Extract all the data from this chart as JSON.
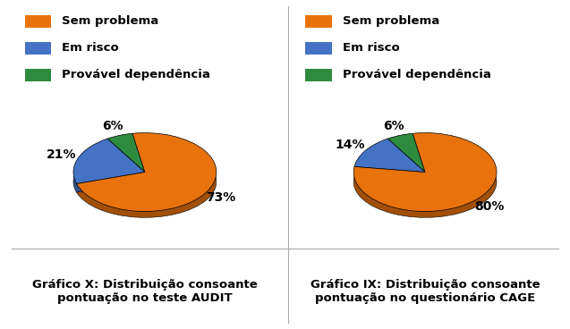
{
  "left_chart": {
    "values": [
      73,
      21,
      6
    ],
    "labels": [
      "73%",
      "21%",
      "6%"
    ],
    "colors": [
      "#E8720C",
      "#4472C4",
      "#2E8B3E"
    ],
    "title": "Gráfico X: Distribuição consoante\npontuação no teste AUDIT",
    "legend_labels": [
      "Sem problema",
      "Em risco",
      "Provável dependência"
    ],
    "startangle": 100
  },
  "right_chart": {
    "values": [
      80,
      14,
      6
    ],
    "labels": [
      "80%",
      "14%",
      "6%"
    ],
    "colors": [
      "#E8720C",
      "#4472C4",
      "#2E8B3E"
    ],
    "title": "Gráfico IX: Distribuição consoante\npontuação no questionário CAGE",
    "legend_labels": [
      "Sem problema",
      "Em risco",
      "Provável dependência"
    ],
    "startangle": 100
  },
  "background_color": "#FFFFFF",
  "divider_color": "#AAAAAA",
  "title_fontsize": 9.5,
  "legend_fontsize": 9.5,
  "pct_fontsize": 10
}
